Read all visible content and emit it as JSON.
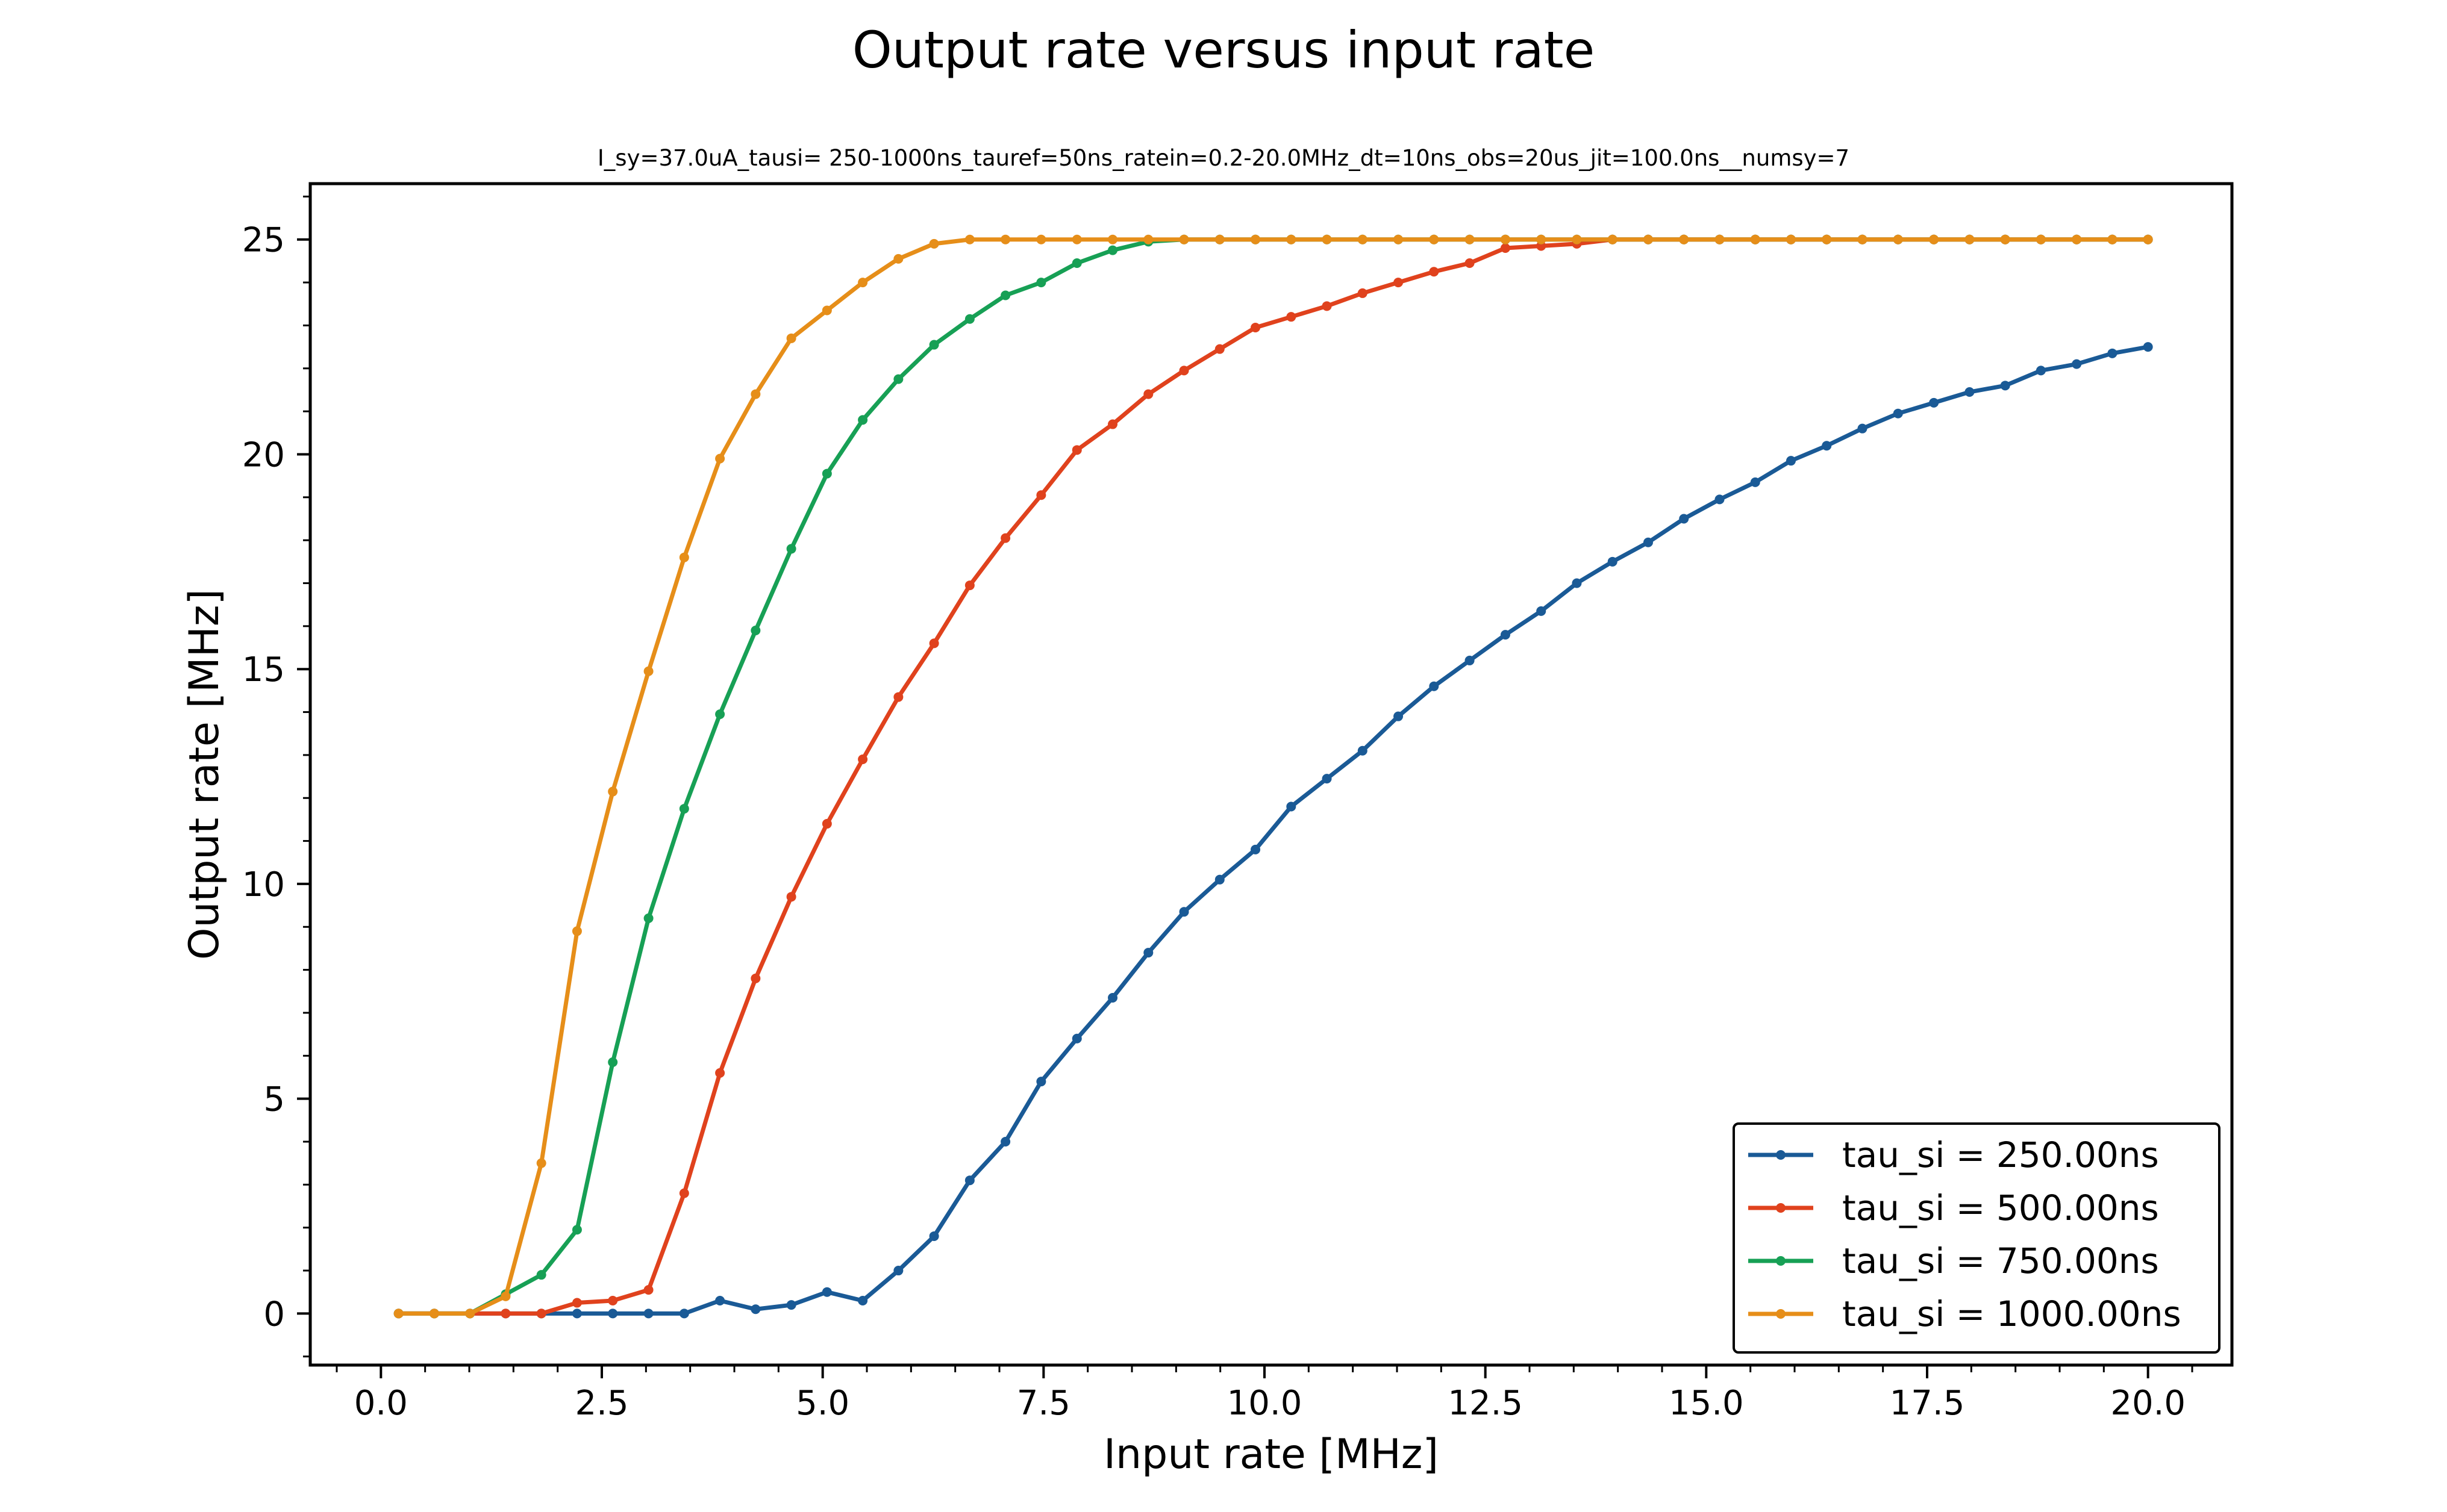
{
  "chart_data": {
    "type": "line",
    "title": "Output rate versus input rate",
    "subtitle": "I_sy=37.0uA_tausi= 250-1000ns_tauref=50ns_ratein=0.2-20.0MHz_dt=10ns_obs=20us_jit=100.0ns__numsy=7",
    "xlabel": "Input rate [MHz]",
    "ylabel": "Output rate [MHz]",
    "xlim": [
      -0.8,
      20.95
    ],
    "ylim": [
      -1.2,
      26.3
    ],
    "xticks": [
      "0.0",
      "2.5",
      "5.0",
      "7.5",
      "10.0",
      "12.5",
      "15.0",
      "17.5",
      "20.0"
    ],
    "yticks": [
      "0",
      "5",
      "10",
      "15",
      "20",
      "25"
    ],
    "grid": false,
    "legend_position": "lower-right",
    "x": [
      0.2,
      0.604,
      1.008,
      1.412,
      1.816,
      2.22,
      2.624,
      3.029,
      3.433,
      3.837,
      4.241,
      4.645,
      5.049,
      5.453,
      5.857,
      6.261,
      6.665,
      7.069,
      7.473,
      7.878,
      8.282,
      8.686,
      9.09,
      9.494,
      9.898,
      10.302,
      10.706,
      11.11,
      11.514,
      11.918,
      12.322,
      12.727,
      13.131,
      13.535,
      13.939,
      14.343,
      14.747,
      15.151,
      15.555,
      15.959,
      16.363,
      16.767,
      17.171,
      17.576,
      17.98,
      18.384,
      18.788,
      19.192,
      19.596,
      20.0
    ],
    "series": [
      {
        "name": "tau_si = 250.00ns",
        "color": "#1a5a96",
        "values": [
          0,
          0,
          0,
          0,
          0,
          0,
          0,
          0,
          0,
          0.3,
          0.1,
          0.2,
          0.5,
          0.3,
          1.0,
          1.8,
          3.1,
          4.0,
          5.4,
          6.4,
          7.35,
          8.4,
          9.35,
          10.1,
          10.8,
          11.8,
          12.45,
          13.1,
          13.9,
          14.6,
          15.2,
          15.8,
          16.35,
          17.0,
          17.5,
          17.95,
          18.5,
          18.95,
          19.35,
          19.85,
          20.2,
          20.6,
          20.95,
          21.2,
          21.45,
          21.6,
          21.95,
          22.1,
          22.35,
          22.5
        ]
      },
      {
        "name": "tau_si = 500.00ns",
        "color": "#e0421d",
        "values": [
          0,
          0,
          0,
          0,
          0,
          0.25,
          0.3,
          0.55,
          2.8,
          5.6,
          7.8,
          9.7,
          11.4,
          12.9,
          14.35,
          15.6,
          16.95,
          18.05,
          19.05,
          20.1,
          20.7,
          21.4,
          21.95,
          22.45,
          22.95,
          23.2,
          23.45,
          23.75,
          24.0,
          24.25,
          24.45,
          24.8,
          24.85,
          24.9,
          25,
          25,
          25,
          25,
          25,
          25,
          25,
          25,
          25,
          25,
          25,
          25,
          25,
          25,
          25,
          25
        ]
      },
      {
        "name": "tau_si = 750.00ns",
        "color": "#17a055",
        "values": [
          0,
          0,
          0,
          0.45,
          0.9,
          1.95,
          5.85,
          9.2,
          11.75,
          13.95,
          15.9,
          17.8,
          19.55,
          20.8,
          21.75,
          22.55,
          23.15,
          23.7,
          24.0,
          24.45,
          24.75,
          24.95,
          25,
          25,
          25,
          25,
          25,
          25,
          25,
          25,
          25,
          25,
          25,
          25,
          25,
          25,
          25,
          25,
          25,
          25,
          25,
          25,
          25,
          25,
          25,
          25,
          25,
          25,
          25,
          25
        ]
      },
      {
        "name": "tau_si = 1000.00ns",
        "color": "#e68e19",
        "values": [
          0,
          0,
          0,
          0.4,
          3.5,
          8.9,
          12.15,
          14.95,
          17.6,
          19.9,
          21.4,
          22.7,
          23.35,
          24.0,
          24.55,
          24.9,
          25,
          25,
          25,
          25,
          25,
          25,
          25,
          25,
          25,
          25,
          25,
          25,
          25,
          25,
          25,
          25,
          25,
          25,
          25,
          25,
          25,
          25,
          25,
          25,
          25,
          25,
          25,
          25,
          25,
          25,
          25,
          25,
          25,
          25
        ]
      }
    ]
  }
}
